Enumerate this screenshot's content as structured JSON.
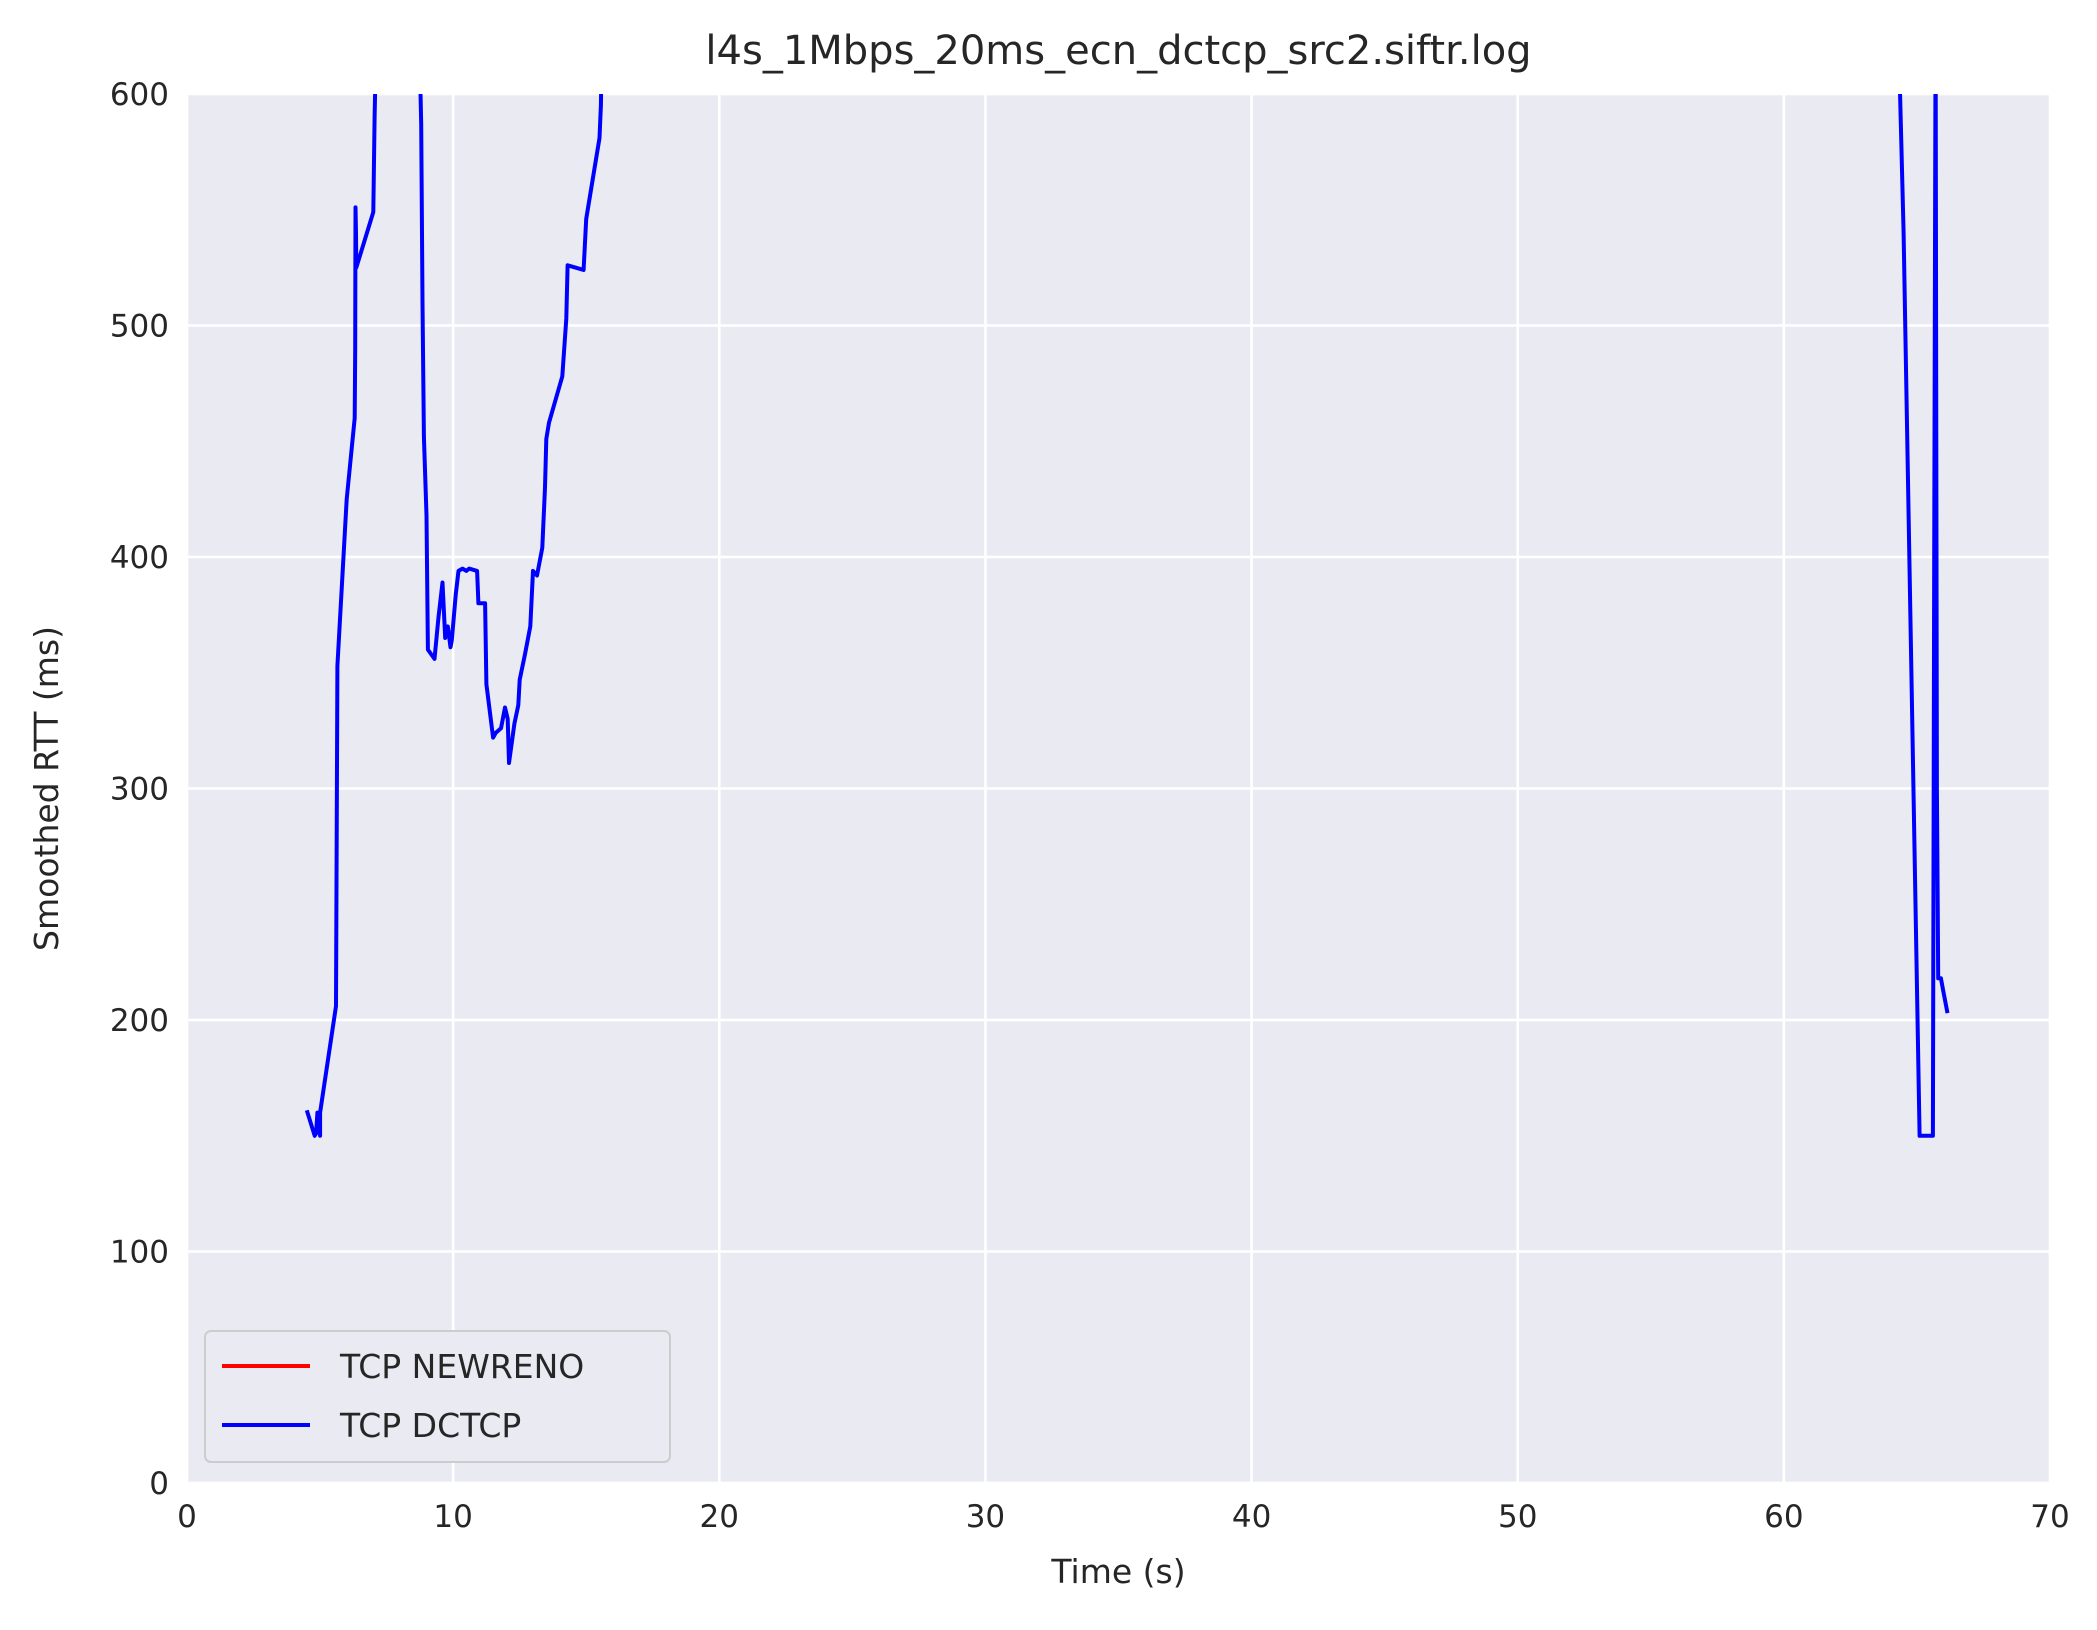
{
  "chart_data": {
    "type": "line",
    "title": "l4s_1Mbps_20ms_ecn_dctcp_src2.siftr.log",
    "xlabel": "Time (s)",
    "ylabel": "Smoothed RTT (ms)",
    "xlim": [
      0,
      70
    ],
    "ylim": [
      0,
      600
    ],
    "xticks": [
      "0",
      "10",
      "20",
      "30",
      "40",
      "50",
      "60",
      "70"
    ],
    "yticks": [
      "0",
      "100",
      "200",
      "300",
      "400",
      "500",
      "600"
    ],
    "grid": true,
    "legend_position": "lower-left",
    "series": [
      {
        "name": "TCP NEWRENO",
        "color": "#ff0000",
        "x": [],
        "y": []
      },
      {
        "name": "TCP DCTCP",
        "color": "#0000ff",
        "x": [
          4.5,
          4.8,
          4.85,
          4.9,
          5.0,
          5.0,
          5.6,
          5.65,
          6.0,
          6.3,
          6.32,
          6.33,
          6.35,
          6.36,
          7.0,
          7.05,
          7.1,
          8.7,
          8.8,
          8.85,
          8.9,
          9.0,
          9.05,
          9.3,
          9.45,
          9.6,
          9.7,
          9.8,
          9.9,
          9.95,
          10.1,
          10.2,
          10.35,
          10.5,
          10.6,
          10.9,
          10.95,
          11.2,
          11.25,
          11.5,
          11.6,
          11.8,
          11.95,
          12.05,
          12.1,
          12.3,
          12.45,
          12.5,
          12.7,
          12.9,
          13.0,
          13.15,
          13.35,
          13.45,
          13.5,
          13.6,
          14.1,
          14.25,
          14.3,
          14.9,
          15.0,
          15.5,
          15.55,
          15.6,
          64.3,
          64.5,
          65.1,
          65.4,
          65.6,
          65.65,
          65.7,
          65.72,
          65.75,
          65.8,
          65.9,
          66.0,
          66.15
        ],
        "y": [
          161,
          150,
          151,
          160,
          150,
          160,
          206,
          353,
          425,
          460,
          490,
          551,
          540,
          525,
          549,
          590,
          620,
          640,
          587,
          510,
          452,
          418,
          360,
          356,
          374,
          389,
          365,
          370,
          361,
          364,
          384,
          394,
          395,
          394,
          395,
          394,
          380,
          380,
          345,
          322,
          324,
          326,
          335,
          330,
          311,
          328,
          336,
          347,
          358,
          370,
          394,
          392,
          404,
          430,
          451,
          458,
          478,
          503,
          526,
          524,
          546,
          581,
          595,
          630,
          630,
          540,
          150,
          150,
          150,
          400,
          630,
          500,
          300,
          218,
          218,
          212,
          203
        ]
      }
    ]
  }
}
